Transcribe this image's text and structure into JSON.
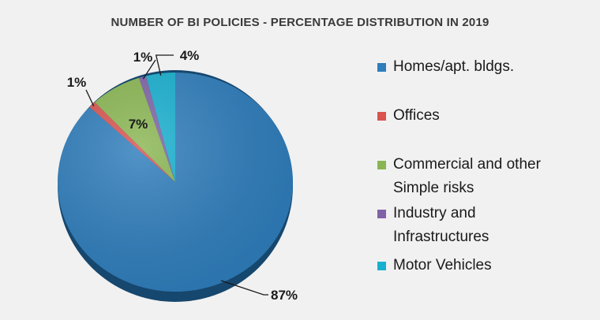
{
  "chart_data": {
    "type": "pie",
    "title": "NUMBER OF BI POLICIES - PERCENTAGE DISTRIBUTION IN 2019",
    "legend_position": "right",
    "slices": [
      {
        "name": "Homes/apt. bldgs.",
        "value": 87,
        "label": "87%",
        "color": "#2e7dbc"
      },
      {
        "name": "Offices",
        "value": 1,
        "label": "1%",
        "color": "#d9534f"
      },
      {
        "name": "Commercial and other Simple risks",
        "value": 7,
        "label": "7%",
        "color": "#8ab652"
      },
      {
        "name": "Industry and Infrastructures",
        "value": 1,
        "label": "1%",
        "color": "#7f63a6"
      },
      {
        "name": "Motor Vehicles",
        "value": 4,
        "label": "4%",
        "color": "#17b0d0"
      }
    ]
  }
}
